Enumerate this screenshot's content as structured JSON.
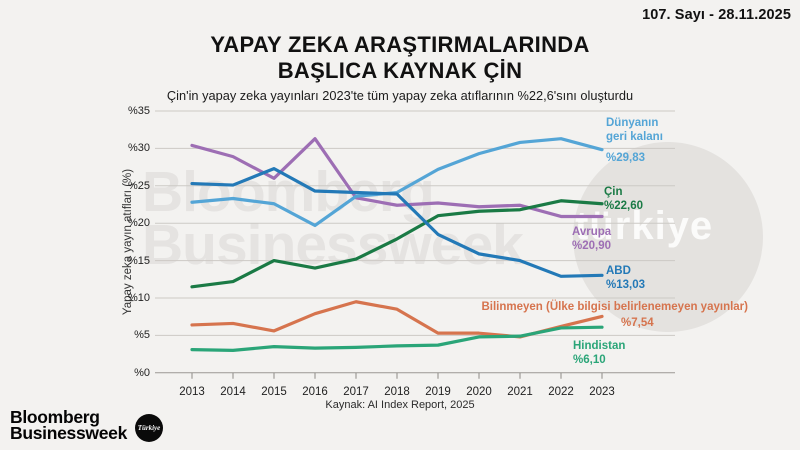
{
  "header": {
    "issue": "107. Sayı - 28.11.2025"
  },
  "title": {
    "line1": "YAPAY ZEKA ARAŞTIRMALARINDA",
    "line2": "BAŞLICA KAYNAK ÇİN"
  },
  "subtitle": "Çin'in yapay zeka yayınları 2023'te tüm yapay zeka atıflarının %22,6'sını oluşturdu",
  "chart_data": {
    "type": "line",
    "x": [
      2013,
      2014,
      2015,
      2016,
      2017,
      2018,
      2019,
      2020,
      2021,
      2022,
      2023
    ],
    "ylabel": "Yapay zeka yayın atıfları (%)",
    "ylim": [
      0,
      35
    ],
    "ytick_step": 5,
    "ytick_labels": [
      "%0",
      "%5",
      "%10",
      "%15",
      "%20",
      "%25",
      "%30",
      "%35"
    ],
    "grid": true,
    "legend_position": "right-end-of-line",
    "series": [
      {
        "name": "Dünyanın geri kalanı",
        "color": "#54a5d6",
        "values": [
          22.8,
          23.3,
          22.6,
          19.7,
          23.6,
          24.1,
          27.2,
          29.3,
          30.8,
          31.3,
          29.83
        ],
        "end_label": "%29,83"
      },
      {
        "name": "Çin",
        "color": "#1a7a45",
        "values": [
          11.5,
          12.2,
          15.0,
          14.0,
          15.2,
          17.9,
          21.0,
          21.6,
          21.8,
          23.0,
          22.6
        ],
        "end_label": "%22,60"
      },
      {
        "name": "Avrupa",
        "color": "#9d6eb4",
        "values": [
          30.4,
          28.9,
          26.0,
          31.3,
          23.4,
          22.4,
          22.7,
          22.2,
          22.4,
          20.9,
          20.9
        ],
        "end_label": "%20,90"
      },
      {
        "name": "ABD",
        "color": "#2379b7",
        "values": [
          25.3,
          25.1,
          27.3,
          24.3,
          24.1,
          23.9,
          18.5,
          15.9,
          15.0,
          12.9,
          13.03
        ],
        "end_label": "%13,03"
      },
      {
        "name": "Bilinmeyen (Ülke bilgisi belirlenemeyen yayınlar)",
        "color": "#d6744e",
        "values": [
          6.4,
          6.6,
          5.6,
          7.9,
          9.5,
          8.5,
          5.3,
          5.3,
          4.8,
          6.2,
          7.54
        ],
        "end_label": "%7,54"
      },
      {
        "name": "Hindistan",
        "color": "#2aa578",
        "values": [
          3.1,
          3.0,
          3.5,
          3.3,
          3.4,
          3.6,
          3.7,
          4.8,
          4.9,
          6.0,
          6.1
        ],
        "end_label": "%6,10"
      }
    ],
    "source": "Kaynak: AI Index Report, 2025"
  },
  "legend": {
    "rest": {
      "name_l1": "Dünyanın",
      "name_l2": "geri kalanı",
      "value": "%29,83"
    },
    "cin": {
      "name": "Çin",
      "value": "%22,60"
    },
    "avrupa": {
      "name": "Avrupa",
      "value": "%20,90"
    },
    "abd": {
      "name": "ABD",
      "value": "%13,03"
    },
    "bilinmeyen": {
      "name": "Bilinmeyen (Ülke bilgisi belirlenemeyen yayınlar)",
      "value": "%7,54"
    },
    "hindistan": {
      "name": "Hindistan",
      "value": "%6,10"
    }
  },
  "watermark": {
    "line1": "Bloomberg",
    "line2": "Businessweek",
    "badge": "türkiye"
  },
  "logo": {
    "line1": "Bloomberg",
    "line2": "Businessweek",
    "badge": "Türkiye"
  }
}
